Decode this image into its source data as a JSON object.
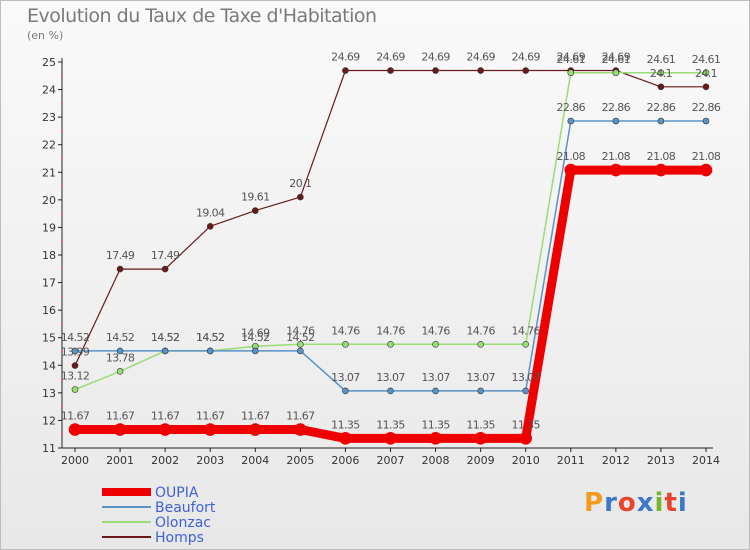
{
  "chart_data": {
    "type": "line",
    "title": "Evolution du Taux de Taxe d'Habitation",
    "subtitle": "(en %)",
    "x": [
      "2000",
      "2001",
      "2002",
      "2003",
      "2004",
      "2005",
      "2006",
      "2007",
      "2008",
      "2009",
      "2010",
      "2011",
      "2012",
      "2013",
      "2014"
    ],
    "ylim": [
      11,
      25
    ],
    "yticks": [
      11,
      12,
      13,
      14,
      15,
      16,
      17,
      18,
      19,
      20,
      21,
      22,
      23,
      24,
      25
    ],
    "grid": false,
    "legend_position": "bottom-left",
    "series": [
      {
        "name": "Homps",
        "color": "#6b1a1a",
        "width": 1.2,
        "values": [
          13.99,
          17.49,
          17.49,
          19.04,
          19.61,
          20.1,
          24.69,
          24.69,
          24.69,
          24.69,
          24.69,
          24.69,
          24.69,
          24.1,
          24.1
        ],
        "labels": [
          "13.99",
          "17.49",
          "17.49",
          "19.04",
          "19.61",
          "20.1",
          "24.69",
          "24.69",
          "24.69",
          "24.69",
          "24.69",
          "24.69",
          "24.69",
          "24.1",
          "24.1"
        ]
      },
      {
        "name": "Olonzac",
        "color": "#99dd77",
        "width": 1.5,
        "values": [
          13.12,
          13.78,
          14.52,
          14.52,
          14.69,
          14.76,
          14.76,
          14.76,
          14.76,
          14.76,
          14.76,
          24.61,
          24.61,
          24.61,
          24.61
        ],
        "labels": [
          "13.12",
          "13.78",
          "14.52",
          "14.52",
          "14.69",
          "14.76",
          "14.76",
          "14.76",
          "14.76",
          "14.76",
          "14.76",
          "24.61",
          "24.61",
          "24.61",
          "24.61"
        ]
      },
      {
        "name": "Beaufort",
        "color": "#5a93c8",
        "width": 1.5,
        "values": [
          14.52,
          14.52,
          14.52,
          14.52,
          14.52,
          14.52,
          13.07,
          13.07,
          13.07,
          13.07,
          13.07,
          22.86,
          22.86,
          22.86,
          22.86
        ],
        "labels": [
          "14.52",
          "14.52",
          "14.52",
          "14.52",
          "14.52",
          "14.52",
          "13.07",
          "13.07",
          "13.07",
          "13.07",
          "13.07",
          "22.86",
          "22.86",
          "22.86",
          "22.86"
        ]
      },
      {
        "name": "OUPIA",
        "color": "#ee0000",
        "width": 9,
        "values": [
          11.67,
          11.67,
          11.67,
          11.67,
          11.67,
          11.67,
          11.35,
          11.35,
          11.35,
          11.35,
          11.35,
          21.08,
          21.08,
          21.08,
          21.08
        ],
        "labels": [
          "11.67",
          "11.67",
          "11.67",
          "11.67",
          "11.67",
          "11.67",
          "11.35",
          "11.35",
          "11.35",
          "11.35",
          "11.35",
          "21.08",
          "21.08",
          "21.08",
          "21.08"
        ]
      }
    ],
    "legend_order": [
      "OUPIA",
      "Beaufort",
      "Olonzac",
      "Homps"
    ]
  },
  "brand": {
    "logo_text": "Proxiti",
    "logo_colors": [
      "#f39b1f",
      "#3a78c9",
      "#e8452c",
      "#3a78c9",
      "#74b72e",
      "#e8452c",
      "#3a78c9"
    ]
  }
}
